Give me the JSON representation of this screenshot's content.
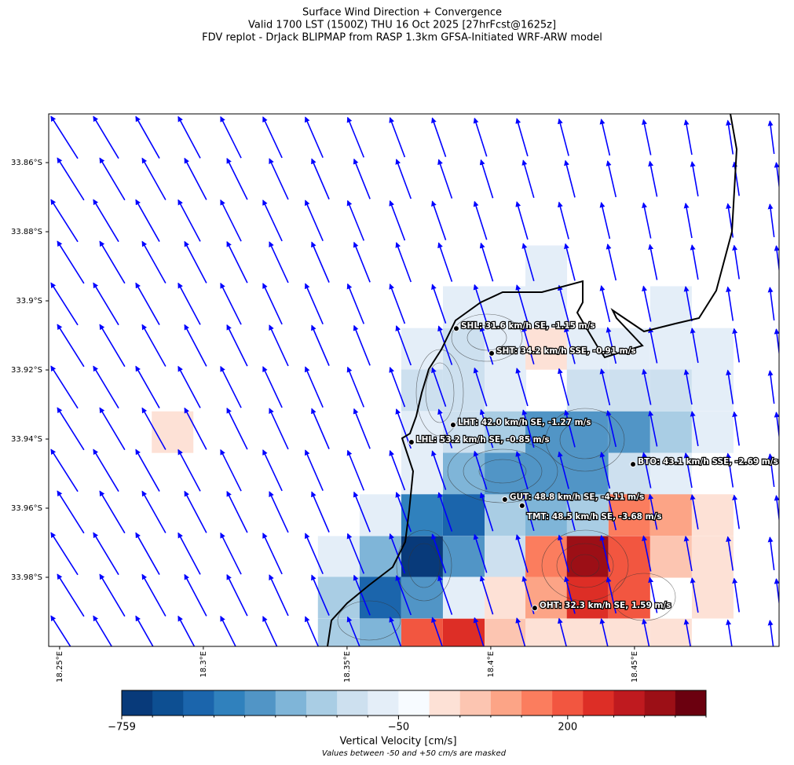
{
  "chart_data": {
    "type": "map",
    "title_lines": [
      "Surface Wind Direction + Convergence",
      "Valid 1700 LST (1500Z) THU 16 Oct 2025 [27hrFcst@1625z]",
      "FDV replot - DrJack BLIPMAP from RASP 1.3km GFSA-Initiated WRF-ARW model"
    ],
    "xlim": [
      18.2462,
      18.5003
    ],
    "ylim": [
      -33.8459,
      -34.0
    ],
    "xticks": [
      {
        "value": 18.25,
        "label": "18.25°E"
      },
      {
        "value": 18.3,
        "label": "18.3°E"
      },
      {
        "value": 18.35,
        "label": "18.35°E"
      },
      {
        "value": 18.4,
        "label": "18.4°E"
      },
      {
        "value": 18.45,
        "label": "18.45°E"
      }
    ],
    "yticks": [
      {
        "value": -33.86,
        "label": "33.86°S"
      },
      {
        "value": -33.88,
        "label": "33.88°S"
      },
      {
        "value": -33.9,
        "label": "33.9°S"
      },
      {
        "value": -33.92,
        "label": "33.92°S"
      },
      {
        "value": -33.94,
        "label": "33.94°S"
      },
      {
        "value": -33.96,
        "label": "33.96°S"
      },
      {
        "value": -33.98,
        "label": "33.98°S"
      }
    ],
    "arrow_color": "#0000ff",
    "cells": [
      {
        "lon": 18.4193,
        "lat": -33.89,
        "value": -90
      },
      {
        "lon": 18.3906,
        "lat": -33.9018,
        "value": -90
      },
      {
        "lon": 18.4051,
        "lat": -33.9018,
        "value": -90
      },
      {
        "lon": 18.4193,
        "lat": -33.9018,
        "value": -90
      },
      {
        "lon": 18.4627,
        "lat": -33.9018,
        "value": -90
      },
      {
        "lon": 18.3761,
        "lat": -33.9139,
        "value": -90
      },
      {
        "lon": 18.3906,
        "lat": -33.9139,
        "value": -160
      },
      {
        "lon": 18.4051,
        "lat": -33.9139,
        "value": -90
      },
      {
        "lon": 18.4193,
        "lat": -33.9139,
        "value": 60
      },
      {
        "lon": 18.4337,
        "lat": -33.9139,
        "value": -90
      },
      {
        "lon": 18.4482,
        "lat": -33.9139,
        "value": -90
      },
      {
        "lon": 18.4627,
        "lat": -33.9139,
        "value": -90
      },
      {
        "lon": 18.4772,
        "lat": -33.9139,
        "value": -90
      },
      {
        "lon": 18.3761,
        "lat": -33.9259,
        "value": -160
      },
      {
        "lon": 18.3906,
        "lat": -33.9259,
        "value": -160
      },
      {
        "lon": 18.4051,
        "lat": -33.9259,
        "value": -90
      },
      {
        "lon": 18.4337,
        "lat": -33.9259,
        "value": -160
      },
      {
        "lon": 18.4482,
        "lat": -33.9259,
        "value": -160
      },
      {
        "lon": 18.4627,
        "lat": -33.9259,
        "value": -160
      },
      {
        "lon": 18.4772,
        "lat": -33.9259,
        "value": -90
      },
      {
        "lon": 18.2893,
        "lat": -33.938,
        "value": 60
      },
      {
        "lon": 18.3761,
        "lat": -33.938,
        "value": -90
      },
      {
        "lon": 18.3906,
        "lat": -33.938,
        "value": -160
      },
      {
        "lon": 18.4051,
        "lat": -33.938,
        "value": -240
      },
      {
        "lon": 18.4193,
        "lat": -33.938,
        "value": -400
      },
      {
        "lon": 18.4337,
        "lat": -33.938,
        "value": -400
      },
      {
        "lon": 18.4482,
        "lat": -33.938,
        "value": -400
      },
      {
        "lon": 18.4627,
        "lat": -33.938,
        "value": -240
      },
      {
        "lon": 18.4772,
        "lat": -33.938,
        "value": -90
      },
      {
        "lon": 18.3761,
        "lat": -33.95,
        "value": -90
      },
      {
        "lon": 18.3906,
        "lat": -33.95,
        "value": -320
      },
      {
        "lon": 18.4051,
        "lat": -33.95,
        "value": -400
      },
      {
        "lon": 18.4193,
        "lat": -33.95,
        "value": -400
      },
      {
        "lon": 18.4337,
        "lat": -33.95,
        "value": -400
      },
      {
        "lon": 18.4482,
        "lat": -33.95,
        "value": -160
      },
      {
        "lon": 18.4627,
        "lat": -33.95,
        "value": -90
      },
      {
        "lon": 18.3616,
        "lat": -33.962,
        "value": -90
      },
      {
        "lon": 18.3761,
        "lat": -33.962,
        "value": -480
      },
      {
        "lon": 18.3906,
        "lat": -33.962,
        "value": -560
      },
      {
        "lon": 18.4051,
        "lat": -33.962,
        "value": -240
      },
      {
        "lon": 18.4193,
        "lat": -33.962,
        "value": -320
      },
      {
        "lon": 18.4337,
        "lat": -33.962,
        "value": -240
      },
      {
        "lon": 18.4482,
        "lat": -33.962,
        "value": 170
      },
      {
        "lon": 18.4627,
        "lat": -33.962,
        "value": 130
      },
      {
        "lon": 18.4772,
        "lat": -33.962,
        "value": 60
      },
      {
        "lon": 18.3471,
        "lat": -33.9741,
        "value": -90
      },
      {
        "lon": 18.3616,
        "lat": -33.9741,
        "value": -320
      },
      {
        "lon": 18.3761,
        "lat": -33.9741,
        "value": -700
      },
      {
        "lon": 18.3906,
        "lat": -33.9741,
        "value": -400
      },
      {
        "lon": 18.4051,
        "lat": -33.9741,
        "value": -160
      },
      {
        "lon": 18.4193,
        "lat": -33.9741,
        "value": 170
      },
      {
        "lon": 18.4337,
        "lat": -33.9741,
        "value": 300
      },
      {
        "lon": 18.4482,
        "lat": -33.9741,
        "value": 200
      },
      {
        "lon": 18.4627,
        "lat": -33.9741,
        "value": 100
      },
      {
        "lon": 18.4772,
        "lat": -33.9741,
        "value": 60
      },
      {
        "lon": 18.3471,
        "lat": -33.9859,
        "value": -240
      },
      {
        "lon": 18.3616,
        "lat": -33.9859,
        "value": -560
      },
      {
        "lon": 18.3761,
        "lat": -33.9859,
        "value": -400
      },
      {
        "lon": 18.3906,
        "lat": -33.9859,
        "value": -90
      },
      {
        "lon": 18.4051,
        "lat": -33.9859,
        "value": 60
      },
      {
        "lon": 18.4193,
        "lat": -33.9859,
        "value": 130
      },
      {
        "lon": 18.4337,
        "lat": -33.9859,
        "value": 230
      },
      {
        "lon": 18.4482,
        "lat": -33.9859,
        "value": 200
      },
      {
        "lon": 18.4772,
        "lat": -33.9859,
        "value": 60
      },
      {
        "lon": 18.3471,
        "lat": -33.998,
        "value": -240
      },
      {
        "lon": 18.3616,
        "lat": -33.998,
        "value": -320
      },
      {
        "lon": 18.3761,
        "lat": -33.998,
        "value": 200
      },
      {
        "lon": 18.3906,
        "lat": -33.998,
        "value": 230
      },
      {
        "lon": 18.4051,
        "lat": -33.998,
        "value": 100
      },
      {
        "lon": 18.4193,
        "lat": -33.998,
        "value": 60
      },
      {
        "lon": 18.4337,
        "lat": -33.998,
        "value": 60
      },
      {
        "lon": 18.4482,
        "lat": -33.998,
        "value": 60
      },
      {
        "lon": 18.4627,
        "lat": -33.998,
        "value": 60
      }
    ],
    "stations": [
      {
        "lon": 18.388,
        "lat": -33.908,
        "label": "SHL: 31.6 km/h SE, -1.15 m/s"
      },
      {
        "lon": 18.4003,
        "lat": -33.9152,
        "label": "SHT: 34.2 km/h SSE, -0.91 m/s"
      },
      {
        "lon": 18.3869,
        "lat": -33.9359,
        "label": "LHT: 42.0 km/h SE, -1.27 m/s"
      },
      {
        "lon": 18.3724,
        "lat": -33.9409,
        "label": "LHL: 53.2 km/h SE, -0.85 m/s"
      },
      {
        "lon": 18.4495,
        "lat": -33.9473,
        "label": "BTO: 43.1 km/h SSE, -2.69 m/s"
      },
      {
        "lon": 18.4049,
        "lat": -33.9575,
        "label": "GUT: 48.8 km/h SE, -4.11 m/s"
      },
      {
        "lon": 18.4109,
        "lat": -33.9593,
        "label": "TMT: 48.5 km/h SE, -3.68 m/s"
      },
      {
        "lon": 18.4153,
        "lat": -33.9889,
        "label": "OHT: 32.3 km/h SE, 1.59 m/s"
      }
    ],
    "colorbar": {
      "label": "Vertical Velocity [cm/s]",
      "note": "Values between -50 and +50 cm/s are masked",
      "levels": [
        -759,
        -680,
        -602,
        -523,
        -444,
        -365,
        -286,
        -208,
        -129,
        -50,
        50,
        83,
        117,
        150,
        183,
        217,
        250,
        283,
        317,
        350
      ],
      "colors": [
        "#083a7a",
        "#0d4f92",
        "#1b65ac",
        "#3081bd",
        "#5195c6",
        "#7fb5d8",
        "#a9cde4",
        "#cde0ef",
        "#e4eef8",
        "#f7fbff",
        "#fde1d6",
        "#fcc5b1",
        "#fca486",
        "#fb7d5e",
        "#f25640",
        "#dd2e26",
        "#bf1a1f",
        "#9c0f16",
        "#6b000f"
      ],
      "ticks": [
        {
          "value": -759,
          "label": "−759"
        },
        {
          "value": -50,
          "label": "−50"
        },
        200
      ]
    }
  }
}
